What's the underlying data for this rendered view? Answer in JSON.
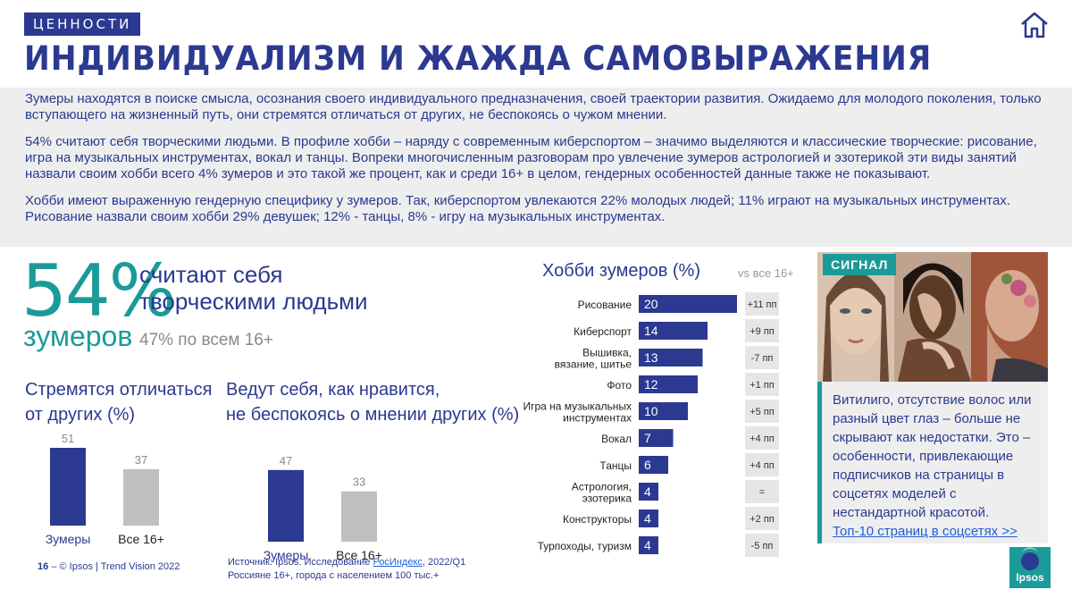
{
  "header": {
    "section": "ЦЕННОСТИ",
    "title": "ИНДИВИДУАЛИЗМ И ЖАЖДА САМОВЫРАЖЕНИЯ"
  },
  "intro": {
    "p1": "Зумеры находятся в поиске смысла, осознания своего индивидуального предназначения, своей траектории развития. Ожидаемо для молодого поколения, только вступающего на жизненный путь, они стремятся отличаться от других, не беспокоясь о чужом мнении.",
    "p2": "54% считают себя творческими людьми. В профиле хобби – наряду с современным киберспортом – значимо выделяются и классические творческие: рисование, игра на музыкальных инструментах, вокал и танцы. Вопреки многочисленным разговорам про увлечение зумеров астрологией и эзотерикой эти виды занятий назвали своим хобби всего 4% зумеров и это такой же процент, как и среди 16+ в целом, гендерных особенностей данные также не показывают.",
    "p3": "Хобби имеют выраженную гендерную специфику у зумеров. Так, киберспортом увлекаются 22% молодых людей; 11% играют на музыкальных инструментах. Рисование назвали своим хобби 29% девушек; 12% - танцы, 8% - игру на музыкальных инструментах."
  },
  "stat": {
    "value": "54%",
    "subject": "зумеров",
    "line1": "считают себя",
    "line2": "творческими людьми",
    "note": "47% по всем 16+"
  },
  "colors": {
    "primary": "#2b3990",
    "accent": "#1b9a9a",
    "gray_bar": "#c0c0c0"
  },
  "chart_data": [
    {
      "type": "bar",
      "title": "Стремятся отличаться от других (%)",
      "title_lines": [
        "Стремятся отличаться",
        "от других (%)"
      ],
      "categories": [
        "Зумеры",
        "Все 16+"
      ],
      "values": [
        51,
        37
      ],
      "colors": [
        "#2b3990",
        "#c0c0c0"
      ]
    },
    {
      "type": "bar",
      "title": "Ведут себя, как нравится, не беспокоясь о мнении других (%)",
      "title_lines": [
        "Ведут себя, как нравится,",
        "не беспокоясь о мнении других (%)"
      ],
      "categories": [
        "Зумеры",
        "Все 16+"
      ],
      "values": [
        47,
        33
      ],
      "colors": [
        "#2b3990",
        "#c0c0c0"
      ]
    },
    {
      "type": "bar",
      "orientation": "horizontal",
      "title": "Хобби зумеров (%)",
      "comparison_header": "vs все 16+",
      "categories": [
        [
          "Рисование"
        ],
        [
          "Киберспорт"
        ],
        [
          "Вышивка,",
          "вязание, шитье"
        ],
        [
          "Фото"
        ],
        [
          "Игра на музыкальных",
          "инструментах"
        ],
        [
          "Вокал"
        ],
        [
          "Танцы"
        ],
        [
          "Астрология,",
          "эзотерика"
        ],
        [
          "Конструкторы"
        ],
        [
          "Турпоходы, туризм"
        ]
      ],
      "values": [
        20,
        14,
        13,
        12,
        10,
        7,
        6,
        4,
        4,
        4
      ],
      "comparison": [
        "+11 пп",
        "+9 пп",
        "-7 пп",
        "+1 пп",
        "+5 пп",
        "+4 пп",
        "+4 пп",
        "=",
        "+2 пп",
        "-5 пп"
      ]
    }
  ],
  "signal": {
    "tag": "СИГНАЛ",
    "text": "Витилиго, отсутствие волос или разный цвет глаз – больше не скрывают как недостатки. Это – особенности, привлекающие подписчиков на страницы в соцсетях моделей с нестандартной красотой.",
    "link": "Топ-10 страниц в соцсетях >>"
  },
  "footer": {
    "page": "16",
    "credit": "–  © Ipsos | Trend Vision 2022",
    "source_prefix": "Источник: Ipsos. Исследование ",
    "source_link": "РосИндекс",
    "source_suffix": ", 2022/Q1",
    "source_line2": "Россияне 16+, города с населением 100 тыс.+",
    "logo": "Ipsos"
  },
  "icons": {
    "home": "home-icon"
  }
}
